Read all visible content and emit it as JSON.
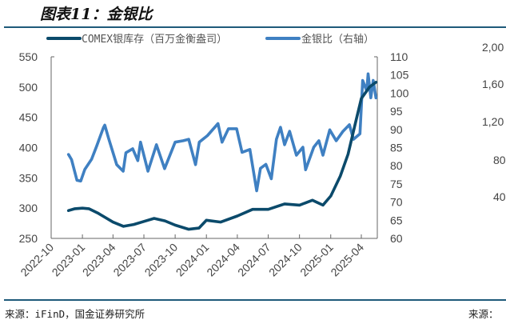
{
  "title": "图表11：金银比",
  "source": "来源：iFinD，国金证券研究所",
  "adjacent_source_fragment": "来源：",
  "adjacent_chart_fragment_ticks": [
    "2,00",
    "1,60",
    "1,20",
    "80",
    "40"
  ],
  "colors": {
    "silver_inventory": "#0b4a6b",
    "gold_silver_ratio": "#3f80c2",
    "rule": "#1f5a7a"
  },
  "chart_data": {
    "type": "line",
    "title": "",
    "legend_placement": "top",
    "grid": false,
    "x_axis": {
      "type": "date",
      "range": [
        "2022-10-01",
        "2025-05-16"
      ],
      "tick_labels": [
        "2022-10",
        "2023-01",
        "2023-04",
        "2023-07",
        "2023-10",
        "2024-01",
        "2024-04",
        "2024-07",
        "2024-10",
        "2025-01",
        "2025-04"
      ]
    },
    "y_left": {
      "range": [
        250,
        550
      ],
      "ticks": [
        250,
        300,
        350,
        400,
        450,
        500,
        550
      ]
    },
    "y_right": {
      "range": [
        60,
        110
      ],
      "ticks": [
        60,
        65,
        70,
        75,
        80,
        85,
        90,
        95,
        100,
        105,
        110
      ]
    },
    "series": [
      {
        "name": "COMEX银库存（百万金衡盎司）",
        "axis": "left",
        "points": [
          [
            "2022-11-21",
            296
          ],
          [
            "2022-12-10",
            299
          ],
          [
            "2023-01-01",
            300
          ],
          [
            "2023-01-20",
            299
          ],
          [
            "2023-02-15",
            292
          ],
          [
            "2023-04-01",
            277
          ],
          [
            "2023-05-02",
            270
          ],
          [
            "2023-06-01",
            273
          ],
          [
            "2023-07-01",
            278
          ],
          [
            "2023-07-31",
            283
          ],
          [
            "2023-09-01",
            279
          ],
          [
            "2023-10-01",
            272
          ],
          [
            "2023-11-10",
            265
          ],
          [
            "2023-12-10",
            267
          ],
          [
            "2024-01-01",
            280
          ],
          [
            "2024-02-12",
            277
          ],
          [
            "2024-04-01",
            287
          ],
          [
            "2024-05-16",
            298
          ],
          [
            "2024-07-01",
            298
          ],
          [
            "2024-08-18",
            307
          ],
          [
            "2024-10-01",
            305
          ],
          [
            "2024-11-08",
            313
          ],
          [
            "2024-12-09",
            305
          ],
          [
            "2025-01-01",
            320
          ],
          [
            "2025-01-29",
            353
          ],
          [
            "2025-02-21",
            389
          ],
          [
            "2025-03-17",
            446
          ],
          [
            "2025-04-01",
            481
          ],
          [
            "2025-04-25",
            500
          ],
          [
            "2025-05-14",
            508
          ]
        ]
      },
      {
        "name": "金银比（右轴）",
        "axis": "right",
        "points": [
          [
            "2022-11-21",
            83.1
          ],
          [
            "2022-11-30",
            81.7
          ],
          [
            "2022-12-16",
            76
          ],
          [
            "2022-12-27",
            75.8
          ],
          [
            "2023-01-08",
            79
          ],
          [
            "2023-01-28",
            81.8
          ],
          [
            "2023-02-12",
            85.4
          ],
          [
            "2023-03-04",
            90.5
          ],
          [
            "2023-03-08",
            91.2
          ],
          [
            "2023-03-19",
            87.6
          ],
          [
            "2023-04-12",
            80.3
          ],
          [
            "2023-05-01",
            78.5
          ],
          [
            "2023-05-09",
            83.6
          ],
          [
            "2023-05-29",
            84.7
          ],
          [
            "2023-06-13",
            81.4
          ],
          [
            "2023-06-21",
            86.5
          ],
          [
            "2023-07-13",
            78.5
          ],
          [
            "2023-08-07",
            85.8
          ],
          [
            "2023-08-31",
            79.2
          ],
          [
            "2023-10-01",
            86.5
          ],
          [
            "2023-10-25",
            86.9
          ],
          [
            "2023-11-10",
            87.3
          ],
          [
            "2023-11-30",
            80.3
          ],
          [
            "2023-12-11",
            86.5
          ],
          [
            "2024-01-04",
            88.3
          ],
          [
            "2024-02-04",
            91.6
          ],
          [
            "2024-02-16",
            86.5
          ],
          [
            "2024-03-06",
            90.2
          ],
          [
            "2024-03-30",
            90.2
          ],
          [
            "2024-04-15",
            83.7
          ],
          [
            "2024-05-08",
            84.5
          ],
          [
            "2024-05-28",
            73.1
          ],
          [
            "2024-06-08",
            79.3
          ],
          [
            "2024-06-24",
            80.4
          ],
          [
            "2024-07-10",
            76.4
          ],
          [
            "2024-07-25",
            87.3
          ],
          [
            "2024-08-06",
            90.6
          ],
          [
            "2024-08-18",
            85.8
          ],
          [
            "2024-09-02",
            89.5
          ],
          [
            "2024-09-22",
            82.9
          ],
          [
            "2024-10-11",
            85.1
          ],
          [
            "2024-10-19",
            78.9
          ],
          [
            "2024-11-12",
            85.1
          ],
          [
            "2024-11-27",
            86.9
          ],
          [
            "2024-12-09",
            82.9
          ],
          [
            "2024-12-29",
            89.9
          ],
          [
            "2025-01-17",
            86.9
          ],
          [
            "2025-02-06",
            89.5
          ],
          [
            "2025-02-25",
            91.3
          ],
          [
            "2025-03-09",
            87.3
          ],
          [
            "2025-03-28",
            88.8
          ],
          [
            "2025-04-05",
            103.5
          ],
          [
            "2025-04-17",
            100.6
          ],
          [
            "2025-04-21",
            105.3
          ],
          [
            "2025-04-29",
            98.7
          ],
          [
            "2025-05-06",
            103.5
          ],
          [
            "2025-05-14",
            98.7
          ]
        ]
      }
    ]
  }
}
